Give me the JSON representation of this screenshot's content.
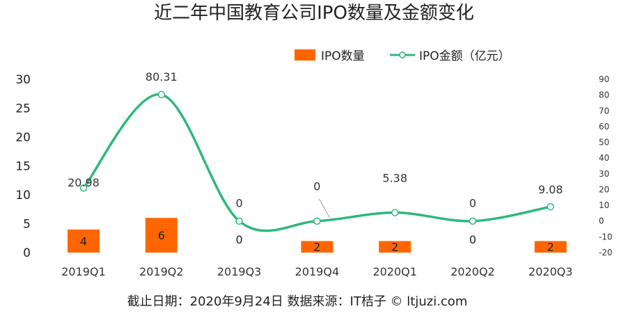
{
  "chart_data": {
    "type": "bar+line",
    "title": "近二年中国教育公司IPO数量及金额变化",
    "categories": [
      "2019Q1",
      "2019Q2",
      "2019Q3",
      "2019Q4",
      "2020Q1",
      "2020Q2",
      "2020Q3"
    ],
    "series": [
      {
        "name": "IPO数量",
        "type": "bar",
        "axis": "left",
        "values": [
          4,
          6,
          0,
          2,
          2,
          0,
          2
        ],
        "value_labels": [
          "4",
          "6",
          "0",
          "2",
          "2",
          "0",
          "2"
        ],
        "color": "#FF6600"
      },
      {
        "name": "IPO金额（亿元）",
        "type": "line",
        "axis": "right",
        "smooth": true,
        "values": [
          20.98,
          80.31,
          0,
          0,
          5.38,
          0,
          9.08
        ],
        "value_labels": [
          "20.98",
          "80.31",
          "0",
          "0",
          "5.38",
          "0",
          "9.08"
        ],
        "color": "#2DB87B"
      }
    ],
    "y_left": {
      "min": 0,
      "max": 30,
      "ticks": [
        "0",
        "5",
        "10",
        "15",
        "20",
        "25",
        "30"
      ]
    },
    "y_right": {
      "min": -20,
      "max": 90,
      "ticks": [
        "-20",
        "-10",
        "0",
        "10",
        "20",
        "30",
        "40",
        "50",
        "60",
        "70",
        "80",
        "90"
      ]
    },
    "legend_position": "top-right",
    "grid": false,
    "footer": "截止日期：2020年9月24日      数据来源：IT桔子 © ltjuzi.com"
  }
}
